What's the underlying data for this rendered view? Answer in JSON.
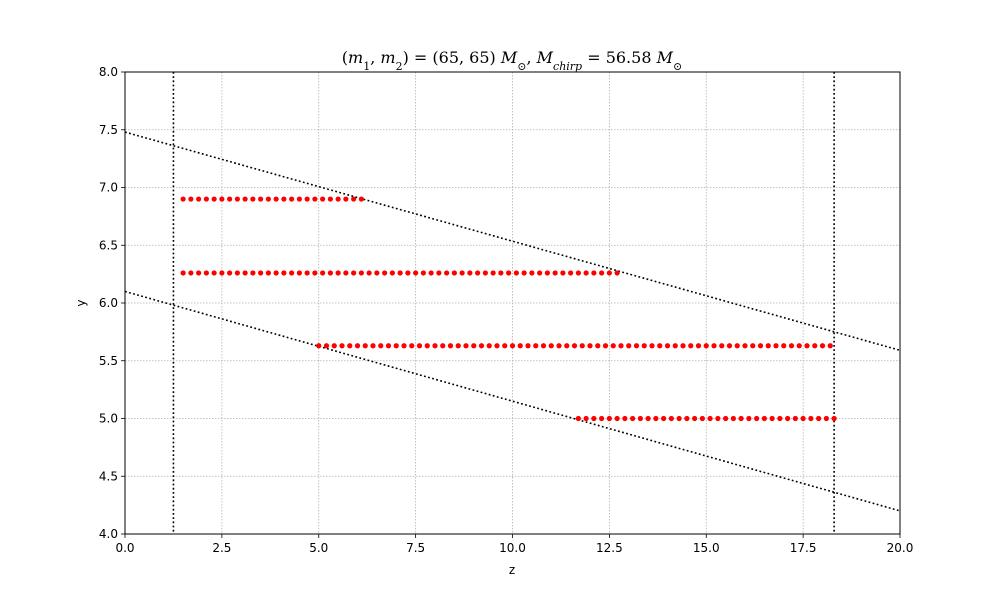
{
  "chart_data": {
    "type": "scatter",
    "title": "(m₁, m₂) = (65, 65) M⊙, M_chirp = 56.58 M⊙",
    "title_parts": {
      "m1": "m",
      "sub1": "1",
      "m2": "m",
      "sub2": "2",
      "pair_values": " = (65, 65) ",
      "M": "M",
      "sun_symbol": "⊙",
      "chirp_M": "M",
      "chirp_sub": "chirp",
      "chirp_value": " = 56.58 "
    },
    "xlabel": "z",
    "ylabel": "y",
    "xlim": [
      0,
      20
    ],
    "ylim": [
      4.0,
      8.0
    ],
    "xticks": [
      "0.0",
      "2.5",
      "5.0",
      "7.5",
      "10.0",
      "12.5",
      "15.0",
      "17.5",
      "20.0"
    ],
    "yticks": [
      "4.0",
      "4.5",
      "5.0",
      "5.5",
      "6.0",
      "6.5",
      "7.0",
      "7.5",
      "8.0"
    ],
    "grid": true,
    "colors": {
      "points": "#ff0000",
      "lines": "#000000",
      "grid": "#b0b0b0"
    },
    "series": [
      {
        "y": 6.9,
        "x_start": 1.5,
        "x_end": 6.2,
        "step": 0.2
      },
      {
        "y": 6.26,
        "x_start": 1.5,
        "x_end": 12.7,
        "step": 0.2
      },
      {
        "y": 5.63,
        "x_start": 5.0,
        "x_end": 18.3,
        "step": 0.2
      },
      {
        "y": 5.0,
        "x_start": 11.7,
        "x_end": 18.3,
        "step": 0.2
      }
    ],
    "boundary_lines": [
      {
        "x1": 0,
        "y1": 7.48,
        "x2": 20,
        "y2": 5.59
      },
      {
        "x1": 0,
        "y1": 6.1,
        "x2": 20,
        "y2": 4.2
      }
    ],
    "vertical_lines": [
      1.25,
      18.3
    ]
  }
}
